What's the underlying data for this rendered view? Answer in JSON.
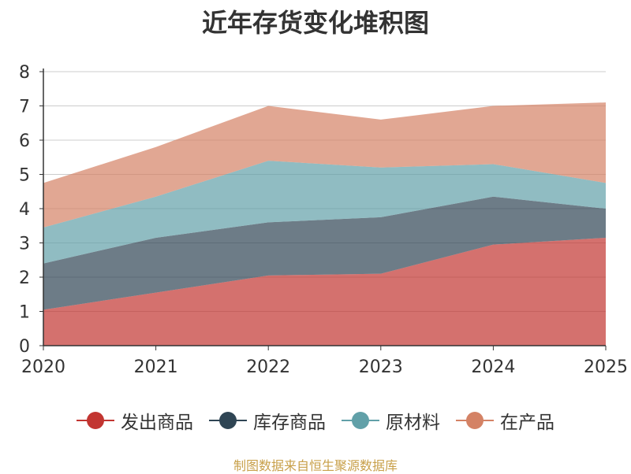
{
  "chart_data": {
    "type": "area",
    "stacked": true,
    "title": "近年存货变化堆积图",
    "xlabel": "",
    "ylabel": "",
    "x": [
      "2020",
      "2021",
      "2022",
      "2023",
      "2024",
      "2025"
    ],
    "ylim": [
      0,
      8
    ],
    "yticks": [
      "0",
      "1",
      "2",
      "3",
      "4",
      "5",
      "6",
      "7",
      "8"
    ],
    "grid": true,
    "legend_position": "bottom",
    "series": [
      {
        "name": "发出商品",
        "color": "#c23531",
        "values": [
          1.05,
          1.55,
          2.05,
          2.1,
          2.95,
          3.15
        ]
      },
      {
        "name": "库存商品",
        "color": "#2f4554",
        "values": [
          1.35,
          1.6,
          1.55,
          1.65,
          1.4,
          0.85
        ]
      },
      {
        "name": "原材料",
        "color": "#61a0a8",
        "values": [
          1.05,
          1.2,
          1.8,
          1.45,
          0.95,
          0.75
        ]
      },
      {
        "name": "在产品",
        "color": "#d48265",
        "values": [
          1.3,
          1.45,
          1.6,
          1.4,
          1.7,
          2.35
        ]
      }
    ]
  },
  "source_note": "制图数据来自恒生聚源数据库"
}
